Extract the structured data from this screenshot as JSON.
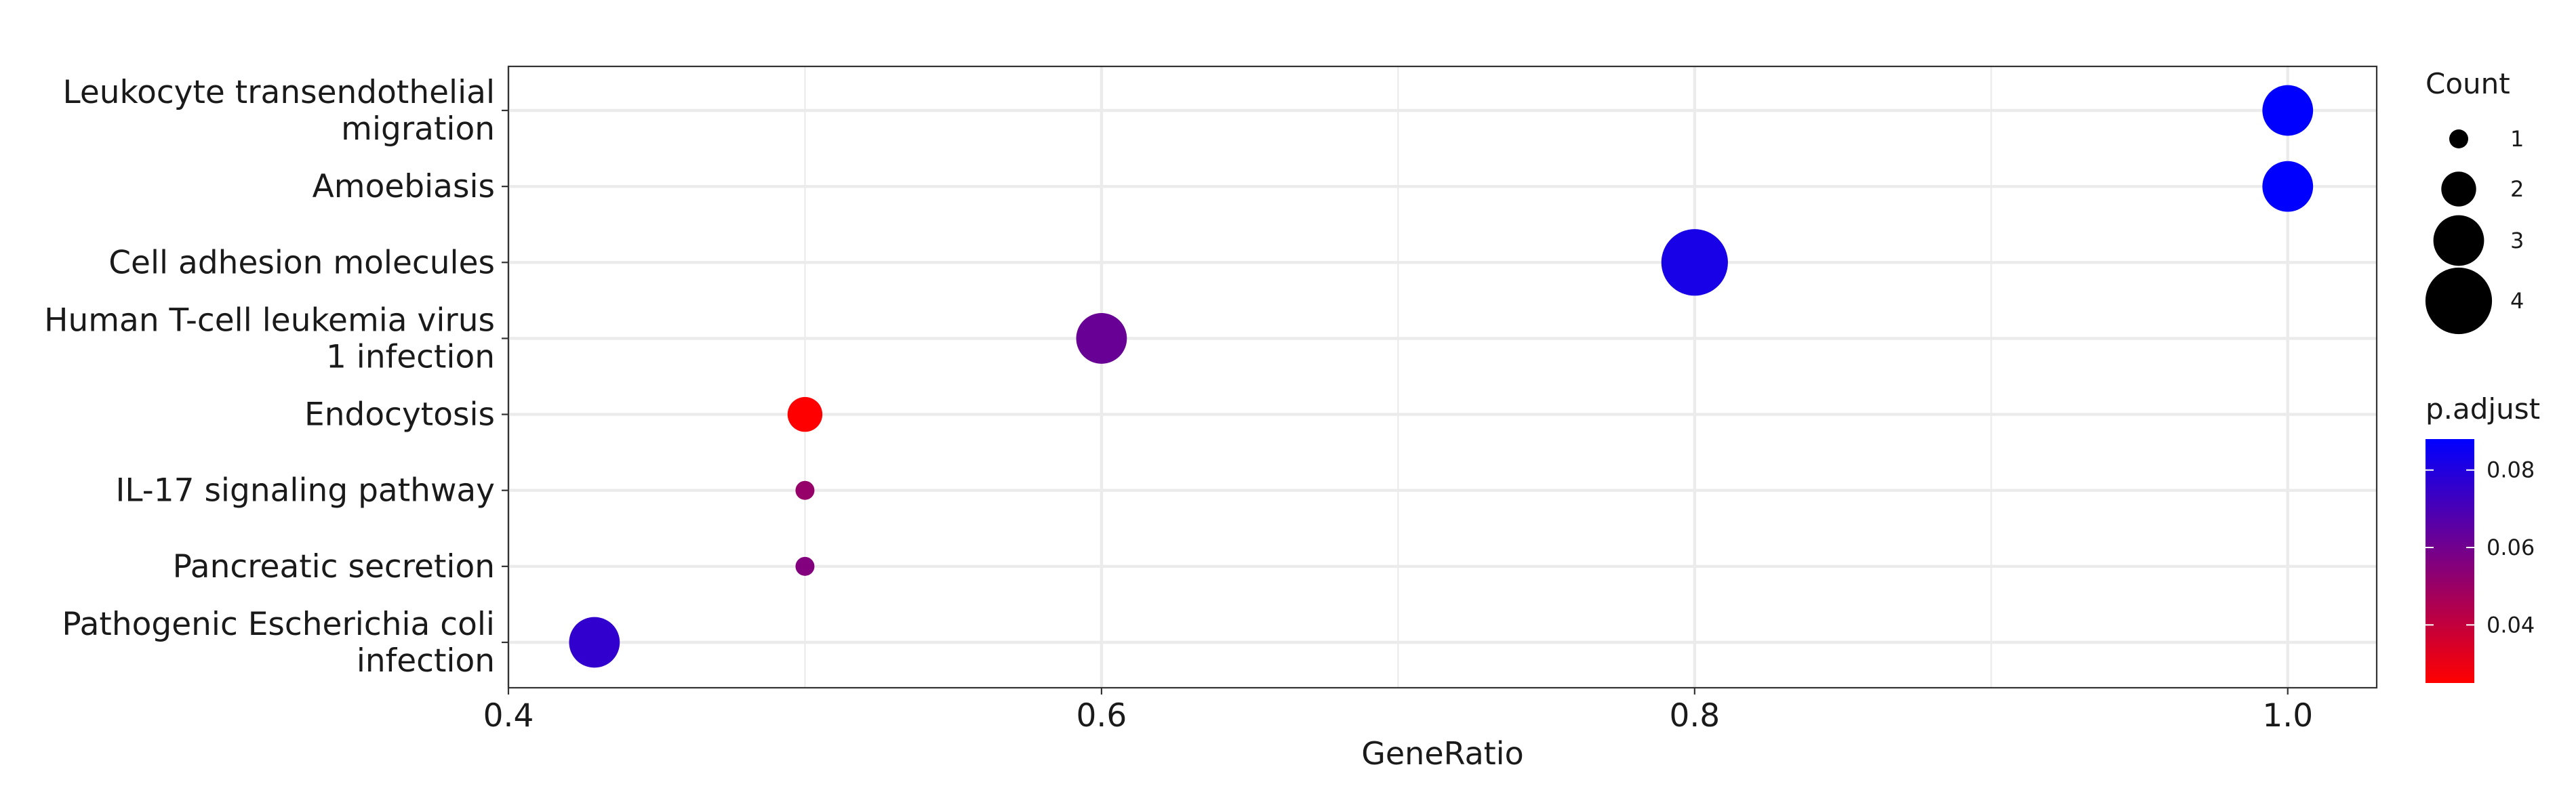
{
  "chart_data": {
    "type": "scatter",
    "xlabel": "GeneRatio",
    "ylabel": "",
    "xlim": [
      0.4,
      1.03
    ],
    "x_ticks": [
      0.4,
      0.6,
      0.8,
      1.0
    ],
    "x_tick_labels": [
      "0.4",
      "0.6",
      "0.8",
      "1.0"
    ],
    "grid": true,
    "categories": [
      [
        "Leukocyte transendothelial",
        "migration"
      ],
      [
        "Amoebiasis"
      ],
      [
        "Cell adhesion molecules"
      ],
      [
        "Human T-cell leukemia virus",
        "1 infection"
      ],
      [
        "Endocytosis"
      ],
      [
        "IL-17 signaling pathway"
      ],
      [
        "Pancreatic secretion"
      ],
      [
        "Pathogenic Escherichia coli",
        "infection"
      ]
    ],
    "points": [
      {
        "category": 0,
        "gene_ratio": 1.0,
        "count": 3,
        "p_adjust": 0.088
      },
      {
        "category": 1,
        "gene_ratio": 1.0,
        "count": 3,
        "p_adjust": 0.088
      },
      {
        "category": 2,
        "gene_ratio": 0.8,
        "count": 4,
        "p_adjust": 0.082
      },
      {
        "category": 3,
        "gene_ratio": 0.6,
        "count": 3,
        "p_adjust": 0.062
      },
      {
        "category": 4,
        "gene_ratio": 0.5,
        "count": 2,
        "p_adjust": 0.025
      },
      {
        "category": 5,
        "gene_ratio": 0.5,
        "count": 1,
        "p_adjust": 0.051
      },
      {
        "category": 6,
        "gene_ratio": 0.5,
        "count": 1,
        "p_adjust": 0.056
      },
      {
        "category": 7,
        "gene_ratio": 0.429,
        "count": 3,
        "p_adjust": 0.076
      }
    ],
    "size_legend": {
      "title": "Count",
      "values": [
        1,
        2,
        3,
        4
      ],
      "labels": [
        "1",
        "2",
        "3",
        "4"
      ]
    },
    "color_legend": {
      "title": "p.adjust",
      "min": 0.025,
      "max": 0.088,
      "ticks": [
        0.04,
        0.06,
        0.08
      ],
      "tick_labels": [
        "0.04",
        "0.06",
        "0.08"
      ],
      "low_color": "#ff0000",
      "high_color": "#0000ff"
    }
  }
}
